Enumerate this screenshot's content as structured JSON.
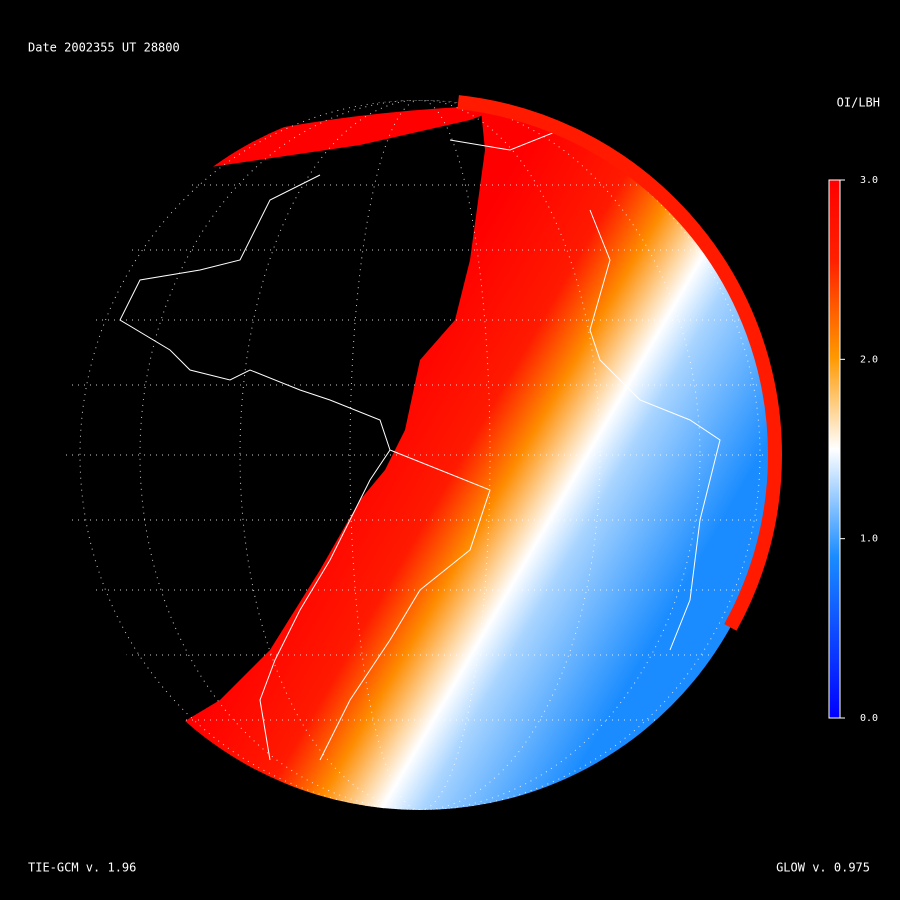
{
  "header": {
    "date": "Date 2002355  UT 28800"
  },
  "colorbar": {
    "title": "OI/LBH",
    "lim": [
      0,
      3
    ],
    "ticks": [
      {
        "value": 3,
        "label": "3.0"
      },
      {
        "value": 2,
        "label": "2.0"
      },
      {
        "value": 1,
        "label": "1.0"
      },
      {
        "value": 0,
        "label": "0.0"
      }
    ]
  },
  "footer": {
    "left": "TIE-GCM v. 1.96",
    "right": "GLOW v. 0.975"
  }
}
